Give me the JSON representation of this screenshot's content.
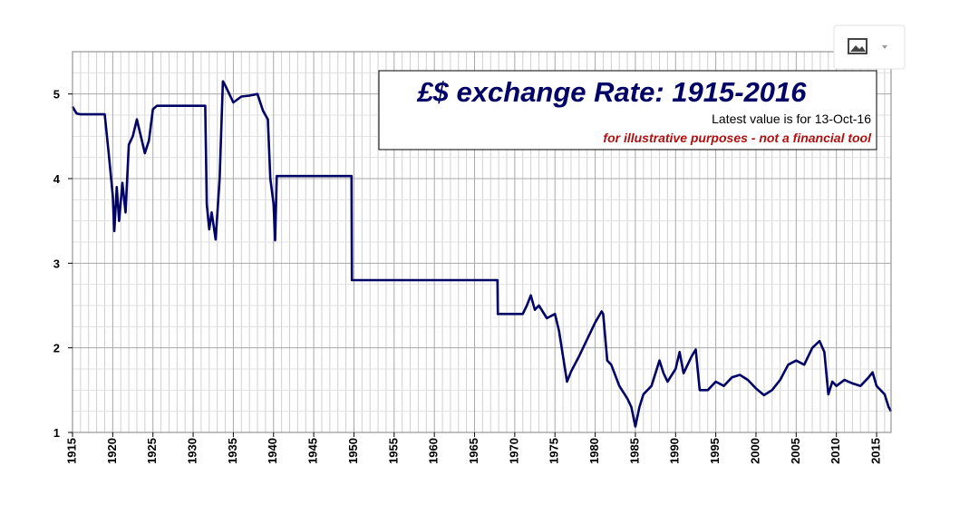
{
  "chart_data": {
    "type": "line",
    "title": "£$ exchange Rate: 1915-2016",
    "subtitle": "Latest value is for 13-Oct-16",
    "annotation": "for illustrative purposes - not a financial tool",
    "xlim": [
      1915,
      2016.8
    ],
    "ylim": [
      1,
      5.5
    ],
    "xticks": [
      1915,
      1920,
      1925,
      1930,
      1935,
      1940,
      1945,
      1950,
      1955,
      1960,
      1965,
      1970,
      1975,
      1980,
      1985,
      1990,
      1995,
      2000,
      2005,
      2010,
      2015
    ],
    "yticks": [
      1,
      2,
      3,
      4,
      5
    ],
    "grid": true,
    "series": [
      {
        "name": "GBP/USD",
        "color": "#000066",
        "x": [
          1915,
          1915.5,
          1916,
          1919,
          1919.5,
          1920,
          1920.2,
          1920.5,
          1920.8,
          1921.2,
          1921.6,
          1922,
          1922.5,
          1923,
          1923.5,
          1924,
          1924.5,
          1925,
          1925.5,
          1930,
          1931.5,
          1931.7,
          1932,
          1932.3,
          1932.8,
          1933.3,
          1933.7,
          1934,
          1935,
          1936,
          1937,
          1938,
          1938.7,
          1939.3,
          1939.6,
          1940,
          1940.2,
          1940.4,
          1949.7,
          1949.75,
          1967.85,
          1967.9,
          1971,
          1971.5,
          1972,
          1972.5,
          1973,
          1974,
          1975,
          1975.5,
          1976,
          1976.5,
          1977,
          1978,
          1979,
          1980,
          1980.8,
          1981,
          1981.5,
          1982,
          1983,
          1984,
          1984.5,
          1985,
          1985.5,
          1986,
          1987,
          1988,
          1988.5,
          1989,
          1990,
          1990.5,
          1991,
          1992,
          1992.5,
          1993,
          1994,
          1995,
          1996,
          1997,
          1998,
          1999,
          2000,
          2001,
          2002,
          2003,
          2004,
          2005,
          2006,
          2007,
          2007.9,
          2008.5,
          2009,
          2009.5,
          2010,
          2011,
          2012,
          2013,
          2014,
          2014.5,
          2015,
          2016,
          2016.5,
          2016.8
        ],
        "values": [
          4.85,
          4.77,
          4.76,
          4.76,
          4.3,
          3.8,
          3.38,
          3.9,
          3.5,
          3.95,
          3.6,
          4.4,
          4.5,
          4.7,
          4.5,
          4.3,
          4.45,
          4.82,
          4.86,
          4.86,
          4.86,
          3.7,
          3.4,
          3.6,
          3.28,
          4.0,
          5.15,
          5.1,
          4.9,
          4.97,
          4.98,
          5.0,
          4.8,
          4.7,
          4.0,
          3.7,
          3.27,
          4.03,
          4.03,
          2.8,
          2.8,
          2.4,
          2.4,
          2.5,
          2.62,
          2.45,
          2.5,
          2.35,
          2.4,
          2.2,
          1.9,
          1.6,
          1.72,
          1.9,
          2.1,
          2.3,
          2.43,
          2.4,
          1.85,
          1.8,
          1.55,
          1.4,
          1.3,
          1.07,
          1.3,
          1.45,
          1.55,
          1.85,
          1.7,
          1.6,
          1.75,
          1.95,
          1.7,
          1.9,
          1.98,
          1.5,
          1.5,
          1.6,
          1.55,
          1.65,
          1.68,
          1.62,
          1.52,
          1.44,
          1.5,
          1.62,
          1.8,
          1.85,
          1.8,
          2.0,
          2.08,
          1.95,
          1.45,
          1.6,
          1.55,
          1.62,
          1.58,
          1.55,
          1.65,
          1.71,
          1.55,
          1.45,
          1.3,
          1.25
        ]
      }
    ]
  }
}
